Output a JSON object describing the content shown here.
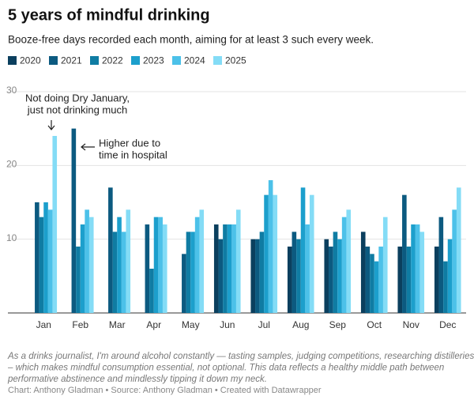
{
  "chart_data": {
    "type": "bar",
    "title": "5 years of mindful drinking",
    "subtitle": "Booze-free days recorded each month, aiming for at least 3 such every week.",
    "categories": [
      "Jan",
      "Feb",
      "Mar",
      "Apr",
      "May",
      "Jun",
      "Jul",
      "Aug",
      "Sep",
      "Oct",
      "Nov",
      "Dec"
    ],
    "series": [
      {
        "name": "2020",
        "color": "#0b3f5e",
        "values": [
          null,
          null,
          null,
          null,
          null,
          12,
          10,
          9,
          10,
          11,
          9,
          9
        ]
      },
      {
        "name": "2021",
        "color": "#0c5a80",
        "values": [
          15,
          25,
          17,
          12,
          8,
          10,
          10,
          11,
          9,
          9,
          16,
          13
        ]
      },
      {
        "name": "2022",
        "color": "#0f7ca3",
        "values": [
          13,
          9,
          11,
          6,
          11,
          12,
          11,
          10,
          11,
          8,
          9,
          7
        ]
      },
      {
        "name": "2023",
        "color": "#1c9fcc",
        "values": [
          15,
          12,
          13,
          13,
          11,
          12,
          16,
          17,
          10,
          7,
          12,
          10
        ]
      },
      {
        "name": "2024",
        "color": "#4cc1e9",
        "values": [
          14,
          14,
          11,
          13,
          13,
          12,
          18,
          12,
          13,
          9,
          12,
          14
        ]
      },
      {
        "name": "2025",
        "color": "#84dcf6",
        "values": [
          24,
          13,
          14,
          12,
          14,
          14,
          16,
          16,
          14,
          13,
          11,
          17
        ]
      }
    ],
    "ylim": [
      0,
      30
    ],
    "yticks": [
      10,
      20,
      30
    ],
    "grid": true,
    "annotations": [
      {
        "lines": [
          "Not doing Dry January,",
          "just not drinking much"
        ]
      },
      {
        "lines": [
          "Higher due to",
          "time in hospital"
        ]
      }
    ],
    "notes": [
      "As a drinks journalist, I'm around alcohol constantly — tasting samples, judging competitions, researching distilleries",
      "– which makes mindful consumption essential, not optional. This data reflects a healthy middle path between",
      "performative abstinence and mindlessly tipping it down my neck."
    ],
    "source": "Chart: Anthony Gladman • Source: Anthony Gladman • Created with Datawrapper"
  }
}
